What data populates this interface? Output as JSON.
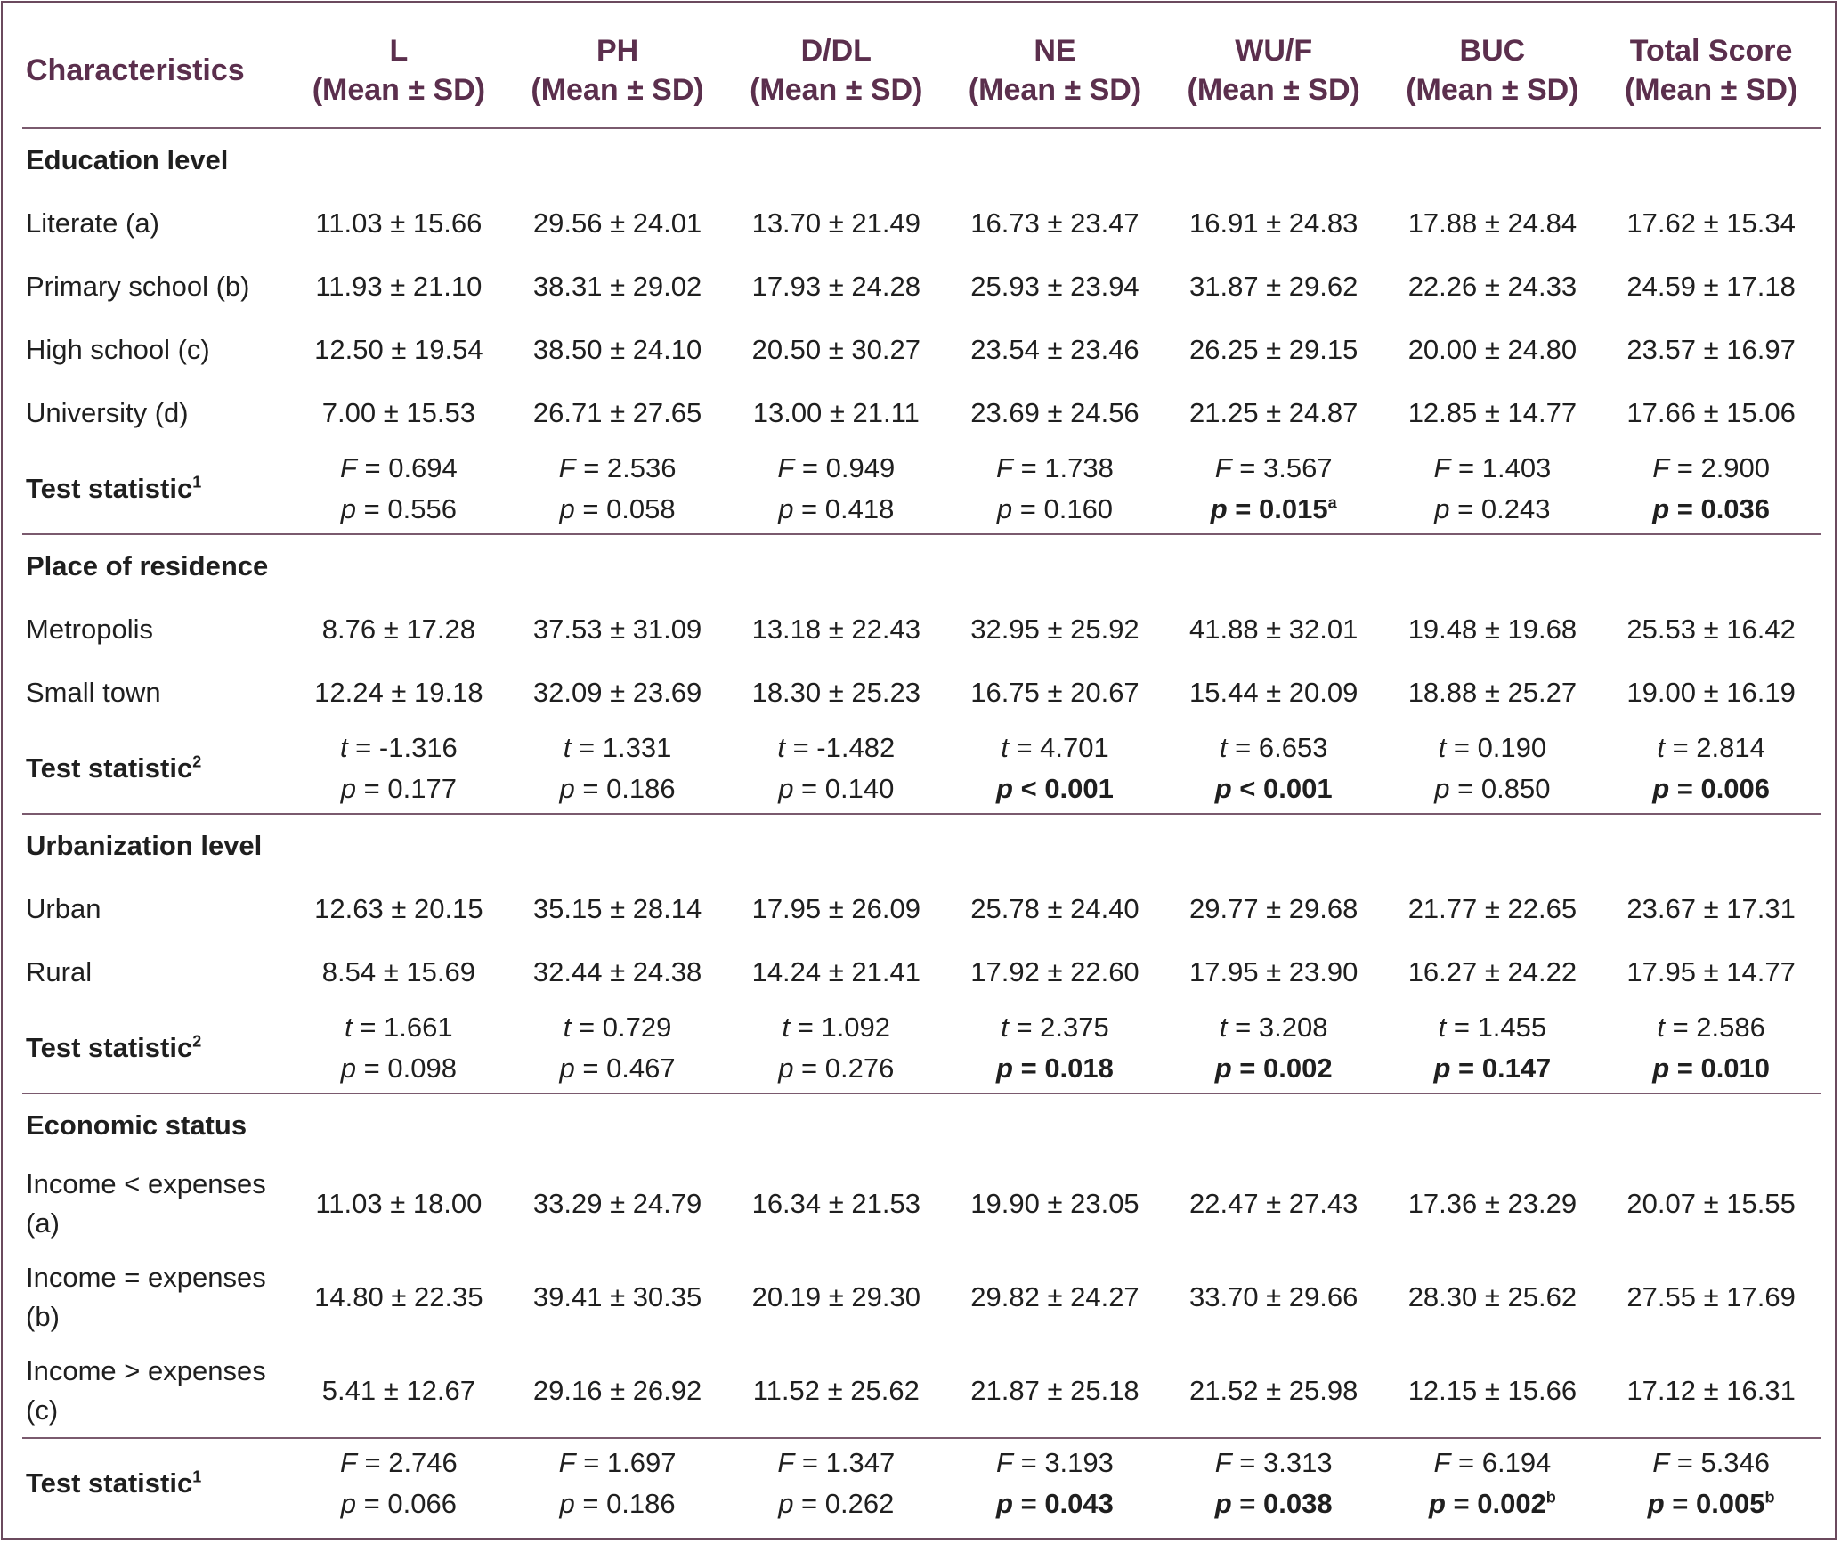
{
  "headers": [
    {
      "line1": "Characteristics",
      "line2": ""
    },
    {
      "line1": "L",
      "line2": "(Mean ± SD)"
    },
    {
      "line1": "PH",
      "line2": "(Mean ± SD)"
    },
    {
      "line1": "D/DL",
      "line2": "(Mean ± SD)"
    },
    {
      "line1": "NE",
      "line2": "(Mean ± SD)"
    },
    {
      "line1": "WU/F",
      "line2": "(Mean ± SD)"
    },
    {
      "line1": "BUC",
      "line2": "(Mean ± SD)"
    },
    {
      "line1": "Total Score",
      "line2": "(Mean ± SD)"
    }
  ],
  "groups": [
    {
      "title": "Education level",
      "rows": [
        {
          "label": "Literate (a)",
          "values": [
            "11.03 ± 15.66",
            "29.56 ± 24.01",
            "13.70 ± 21.49",
            "16.73 ± 23.47",
            "16.91 ± 24.83",
            "17.88 ± 24.84",
            "17.62 ± 15.34"
          ]
        },
        {
          "label": "Primary school (b)",
          "values": [
            "11.93 ± 21.10",
            "38.31 ± 29.02",
            "17.93 ± 24.28",
            "25.93 ± 23.94",
            "31.87 ± 29.62",
            "22.26 ± 24.33",
            "24.59 ± 17.18"
          ]
        },
        {
          "label": "High school (c)",
          "values": [
            "12.50 ± 19.54",
            "38.50 ± 24.10",
            "20.50 ± 30.27",
            "23.54 ± 23.46",
            "26.25 ± 29.15",
            "20.00 ± 24.80",
            "23.57 ± 16.97"
          ]
        },
        {
          "label": "University (d)",
          "values": [
            "7.00 ± 15.53",
            "26.71 ± 27.65",
            "13.00 ± 21.11",
            "23.69 ± 24.56",
            "21.25 ± 24.87",
            "12.85 ± 14.77",
            "17.66 ± 15.06"
          ]
        }
      ],
      "test": {
        "label": "Test statistic",
        "mark": "1",
        "stat": "F",
        "cells": [
          {
            "s": " = 0.694",
            "p": " = 0.556",
            "bold": false,
            "sup": ""
          },
          {
            "s": " = 2.536",
            "p": " = 0.058",
            "bold": false,
            "sup": ""
          },
          {
            "s": " = 0.949",
            "p": " = 0.418",
            "bold": false,
            "sup": ""
          },
          {
            "s": " = 1.738",
            "p": " = 0.160",
            "bold": false,
            "sup": ""
          },
          {
            "s": " = 3.567",
            "p": " = 0.015",
            "bold": true,
            "sup": "a"
          },
          {
            "s": " = 1.403",
            "p": " = 0.243",
            "bold": false,
            "sup": ""
          },
          {
            "s": " = 2.900",
            "p": " = 0.036",
            "bold": true,
            "sup": ""
          }
        ]
      }
    },
    {
      "title": "Place of residence",
      "rows": [
        {
          "label": "Metropolis",
          "values": [
            "8.76 ± 17.28",
            "37.53 ± 31.09",
            "13.18 ± 22.43",
            "32.95 ± 25.92",
            "41.88 ± 32.01",
            "19.48 ± 19.68",
            "25.53 ± 16.42"
          ]
        },
        {
          "label": "Small town",
          "values": [
            "12.24 ± 19.18",
            "32.09 ± 23.69",
            "18.30 ± 25.23",
            "16.75 ± 20.67",
            "15.44 ± 20.09",
            "18.88 ± 25.27",
            "19.00 ± 16.19"
          ]
        }
      ],
      "test": {
        "label": "Test statistic",
        "mark": "2",
        "stat": "t",
        "cells": [
          {
            "s": " = -1.316",
            "p": " = 0.177",
            "bold": false,
            "sup": ""
          },
          {
            "s": " = 1.331",
            "p": " = 0.186",
            "bold": false,
            "sup": ""
          },
          {
            "s": " = -1.482",
            "p": " = 0.140",
            "bold": false,
            "sup": ""
          },
          {
            "s": " = 4.701",
            "p": " < 0.001",
            "bold": true,
            "sup": ""
          },
          {
            "s": " = 6.653",
            "p": " < 0.001",
            "bold": true,
            "sup": ""
          },
          {
            "s": " = 0.190",
            "p": " = 0.850",
            "bold": false,
            "sup": ""
          },
          {
            "s": " = 2.814",
            "p": " = 0.006",
            "bold": true,
            "sup": ""
          }
        ]
      }
    },
    {
      "title": "Urbanization level",
      "rows": [
        {
          "label": "Urban",
          "values": [
            "12.63 ± 20.15",
            "35.15 ± 28.14",
            "17.95 ± 26.09",
            "25.78 ± 24.40",
            "29.77 ± 29.68",
            "21.77 ± 22.65",
            "23.67 ± 17.31"
          ]
        },
        {
          "label": "Rural",
          "values": [
            "8.54 ± 15.69",
            "32.44 ± 24.38",
            "14.24 ± 21.41",
            "17.92 ± 22.60",
            "17.95 ± 23.90",
            "16.27 ± 24.22",
            "17.95 ± 14.77"
          ]
        }
      ],
      "test": {
        "label": "Test statistic",
        "mark": "2",
        "stat": "t",
        "cells": [
          {
            "s": " = 1.661",
            "p": " = 0.098",
            "bold": false,
            "sup": ""
          },
          {
            "s": " = 0.729",
            "p": " = 0.467",
            "bold": false,
            "sup": ""
          },
          {
            "s": " = 1.092",
            "p": " = 0.276",
            "bold": false,
            "sup": ""
          },
          {
            "s": " = 2.375",
            "p": " = 0.018",
            "bold": true,
            "sup": ""
          },
          {
            "s": " = 3.208",
            "p": " = 0.002",
            "bold": true,
            "sup": ""
          },
          {
            "s": " = 1.455",
            "p": " = 0.147",
            "bold": true,
            "sup": ""
          },
          {
            "s": " = 2.586",
            "p": " = 0.010",
            "bold": true,
            "sup": ""
          }
        ]
      }
    },
    {
      "title": "Economic status",
      "rows": [
        {
          "label": "Income < expenses (a)",
          "values": [
            "11.03 ± 18.00",
            "33.29 ± 24.79",
            "16.34 ± 21.53",
            "19.90 ± 23.05",
            "22.47 ± 27.43",
            "17.36 ± 23.29",
            "20.07 ± 15.55"
          ]
        },
        {
          "label": "Income = expenses (b)",
          "values": [
            "14.80 ± 22.35",
            "39.41 ± 30.35",
            "20.19 ± 29.30",
            "29.82 ± 24.27",
            "33.70 ± 29.66",
            "28.30 ± 25.62",
            "27.55 ± 17.69"
          ]
        },
        {
          "label": "Income > expenses (c)",
          "values": [
            "5.41 ± 12.67",
            "29.16 ± 26.92",
            "11.52 ± 25.62",
            "21.87 ± 25.18",
            "21.52 ± 25.98",
            "12.15 ± 15.66",
            "17.12 ± 16.31"
          ]
        }
      ],
      "test": {
        "label": "Test statistic",
        "mark": "1",
        "stat": "F",
        "cells": [
          {
            "s": " = 2.746",
            "p": " = 0.066",
            "bold": false,
            "sup": ""
          },
          {
            "s": " = 1.697",
            "p": " = 0.186",
            "bold": false,
            "sup": ""
          },
          {
            "s": " = 1.347",
            "p": " = 0.262",
            "bold": false,
            "sup": ""
          },
          {
            "s": " = 3.193",
            "p": " = 0.043",
            "bold": true,
            "sup": ""
          },
          {
            "s": " = 3.313",
            "p": " = 0.038",
            "bold": true,
            "sup": ""
          },
          {
            "s": " = 6.194",
            "p": " = 0.002",
            "bold": true,
            "sup": "b"
          },
          {
            "s": " = 5.346",
            "p": " = 0.005",
            "bold": true,
            "sup": "b"
          }
        ]
      }
    }
  ]
}
